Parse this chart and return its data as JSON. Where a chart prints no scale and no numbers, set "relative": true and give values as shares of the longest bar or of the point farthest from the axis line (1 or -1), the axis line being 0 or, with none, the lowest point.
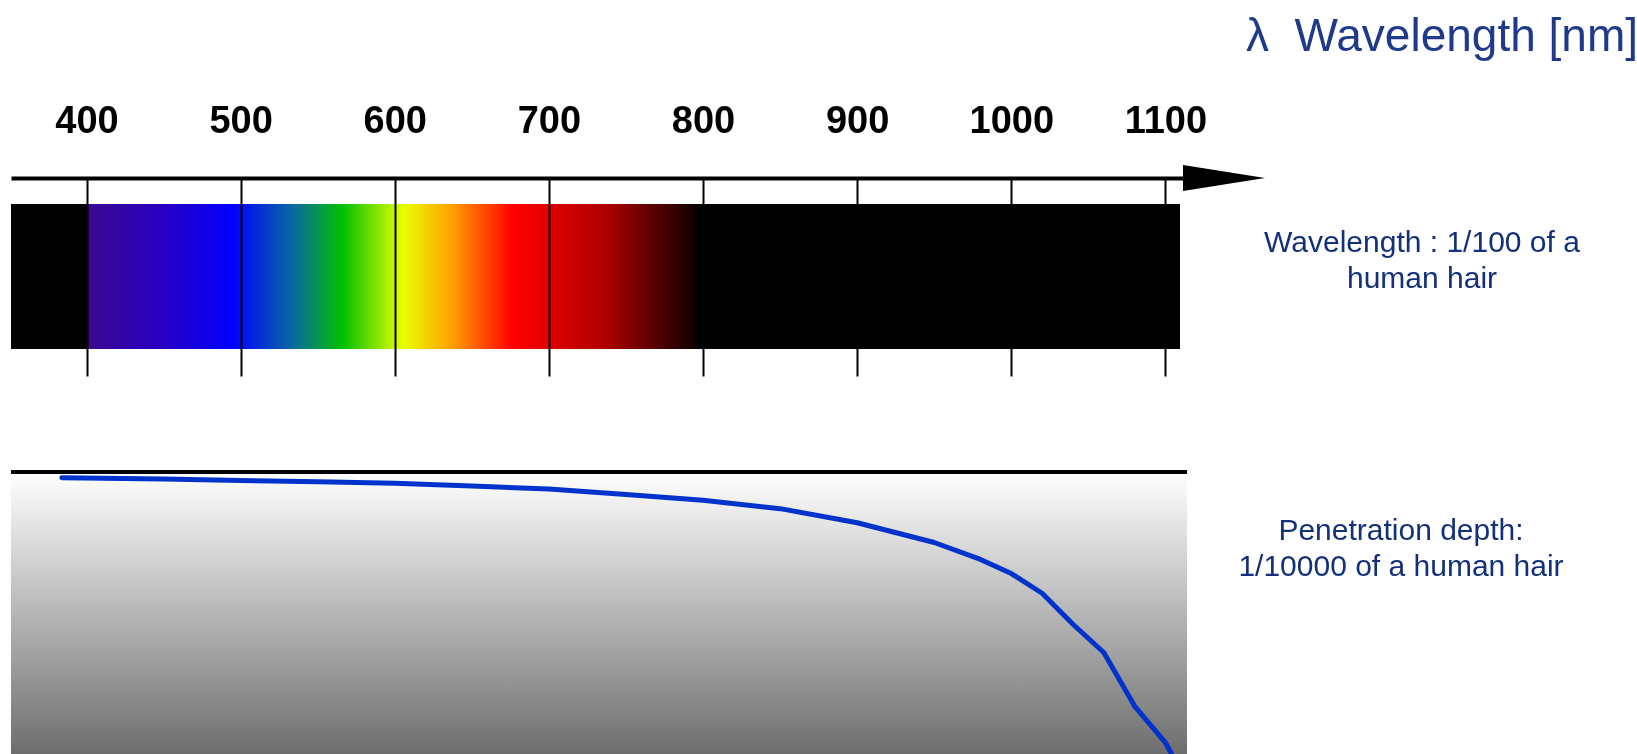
{
  "chart_data": {
    "type": "line",
    "relative": true,
    "xlim": [
      351,
      1114
    ],
    "xticks": [
      400,
      500,
      600,
      700,
      800,
      900,
      1000,
      1100
    ],
    "tick_labels": "x",
    "annotations": [
      "λ  Wavelength [nm]",
      "Wavelength : 1/100 of a human hair",
      "Penetration depth: 1/10000 of a human hair"
    ],
    "series": [
      {
        "color": "#0033cc",
        "x": [
          384,
          450,
          500,
          550,
          600,
          650,
          700,
          750,
          800,
          850,
          900,
          950,
          980,
          1000,
          1020,
          1040,
          1060,
          1080,
          1100,
          1104
        ],
        "values": [
          -0.02,
          -0.025,
          -0.03,
          -0.035,
          -0.04,
          -0.05,
          -0.06,
          -0.08,
          -0.1,
          -0.13,
          -0.18,
          -0.25,
          -0.31,
          -0.36,
          -0.43,
          -0.54,
          -0.64,
          -0.83,
          -0.96,
          -1
        ]
      }
    ]
  }
}
